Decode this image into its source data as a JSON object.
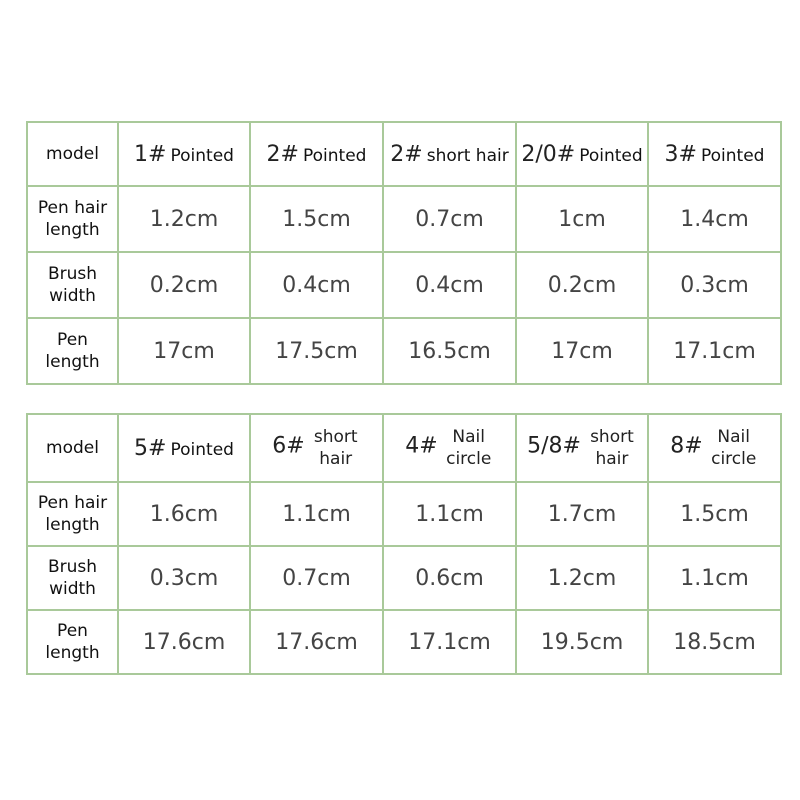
{
  "colors": {
    "border": "#a9c99a"
  },
  "tables": [
    {
      "row_labels": [
        "model",
        "Pen hair\nlength",
        "Brush\nwidth",
        "Pen\nlength"
      ],
      "models": [
        {
          "num": "1#",
          "name": "Pointed"
        },
        {
          "num": "2#",
          "name": "Pointed"
        },
        {
          "num": "2#",
          "name": "short hair"
        },
        {
          "num": "2/0#",
          "name": "Pointed"
        },
        {
          "num": "3#",
          "name": "Pointed"
        }
      ],
      "pen_hair_length": [
        "1.2cm",
        "1.5cm",
        "0.7cm",
        "1cm",
        "1.4cm"
      ],
      "brush_width": [
        "0.2cm",
        "0.4cm",
        "0.4cm",
        "0.2cm",
        "0.3cm"
      ],
      "pen_length": [
        "17cm",
        "17.5cm",
        "16.5cm",
        "17cm",
        "17.1cm"
      ]
    },
    {
      "row_labels": [
        "model",
        "Pen hair\nlength",
        "Brush\nwidth",
        "Pen\nlength"
      ],
      "models": [
        {
          "num": "5#",
          "name": "Pointed"
        },
        {
          "num": "6#",
          "name": "short hair"
        },
        {
          "num": "4#",
          "name": "Nail circle"
        },
        {
          "num": "5/8#",
          "name": "short hair"
        },
        {
          "num": "8#",
          "name": "Nail circle"
        }
      ],
      "pen_hair_length": [
        "1.6cm",
        "1.1cm",
        "1.1cm",
        "1.7cm",
        "1.5cm"
      ],
      "brush_width": [
        "0.3cm",
        "0.7cm",
        "0.6cm",
        "1.2cm",
        "1.1cm"
      ],
      "pen_length": [
        "17.6cm",
        "17.6cm",
        "17.1cm",
        "19.5cm",
        "18.5cm"
      ]
    }
  ]
}
